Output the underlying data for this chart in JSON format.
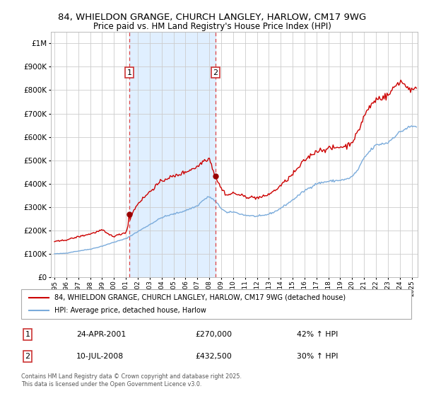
{
  "title1": "84, WHIELDON GRANGE, CHURCH LANGLEY, HARLOW, CM17 9WG",
  "title2": "Price paid vs. HM Land Registry's House Price Index (HPI)",
  "legend_line1": "84, WHIELDON GRANGE, CHURCH LANGLEY, HARLOW, CM17 9WG (detached house)",
  "legend_line2": "HPI: Average price, detached house, Harlow",
  "annotation1_label": "1",
  "annotation1_date": "24-APR-2001",
  "annotation1_price": "£270,000",
  "annotation1_hpi": "42% ↑ HPI",
  "annotation2_label": "2",
  "annotation2_date": "10-JUL-2008",
  "annotation2_price": "£432,500",
  "annotation2_hpi": "30% ↑ HPI",
  "footnote": "Contains HM Land Registry data © Crown copyright and database right 2025.\nThis data is licensed under the Open Government Licence v3.0.",
  "sale1_year": 2001.3,
  "sale1_price": 270000,
  "sale2_year": 2008.53,
  "sale2_price": 432500,
  "price_line_color": "#cc0000",
  "hpi_line_color": "#7aabdb",
  "sale_dot_color": "#990000",
  "vline_color": "#dd4444",
  "shade_color": "#ddeeff",
  "background_color": "#ffffff",
  "grid_color": "#cccccc",
  "ylim": [
    0,
    1000000
  ],
  "xlim_start": 1994.7,
  "xlim_end": 2025.5,
  "years_hpi": [
    1995.0,
    1995.5,
    1996.0,
    1996.5,
    1997.0,
    1997.5,
    1998.0,
    1998.5,
    1999.0,
    1999.5,
    2000.0,
    2000.5,
    2001.0,
    2001.5,
    2002.0,
    2002.5,
    2003.0,
    2003.5,
    2004.0,
    2004.5,
    2005.0,
    2005.5,
    2006.0,
    2006.5,
    2007.0,
    2007.5,
    2008.0,
    2008.5,
    2009.0,
    2009.5,
    2010.0,
    2010.5,
    2011.0,
    2011.5,
    2012.0,
    2012.5,
    2013.0,
    2013.5,
    2014.0,
    2014.5,
    2015.0,
    2015.5,
    2016.0,
    2016.5,
    2017.0,
    2017.5,
    2018.0,
    2018.5,
    2019.0,
    2019.5,
    2020.0,
    2020.5,
    2021.0,
    2021.5,
    2022.0,
    2022.5,
    2023.0,
    2023.5,
    2024.0,
    2024.5,
    2025.0
  ],
  "hpi_vals": [
    100000,
    101000,
    103000,
    108000,
    112000,
    116000,
    120000,
    126000,
    133000,
    141000,
    150000,
    157000,
    165000,
    180000,
    195000,
    210000,
    225000,
    240000,
    255000,
    263000,
    270000,
    277000,
    285000,
    295000,
    305000,
    330000,
    345000,
    325000,
    295000,
    275000,
    280000,
    272000,
    265000,
    263000,
    260000,
    263000,
    270000,
    280000,
    295000,
    312000,
    330000,
    350000,
    370000,
    385000,
    400000,
    405000,
    410000,
    412000,
    415000,
    418000,
    430000,
    460000,
    510000,
    540000,
    565000,
    570000,
    575000,
    600000,
    620000,
    635000,
    645000
  ],
  "price_vals": [
    152000,
    155000,
    160000,
    166000,
    173000,
    179000,
    185000,
    193000,
    202000,
    184000,
    175000,
    183000,
    192000,
    270000,
    315000,
    340000,
    365000,
    390000,
    410000,
    425000,
    430000,
    440000,
    450000,
    462000,
    472000,
    498000,
    510000,
    432500,
    380000,
    350000,
    360000,
    352000,
    345000,
    342000,
    340000,
    343000,
    355000,
    370000,
    392000,
    415000,
    440000,
    468000,
    500000,
    520000,
    540000,
    545000,
    550000,
    552000,
    558000,
    560000,
    580000,
    620000,
    690000,
    730000,
    760000,
    770000,
    775000,
    810000,
    840000,
    820000,
    800000
  ]
}
